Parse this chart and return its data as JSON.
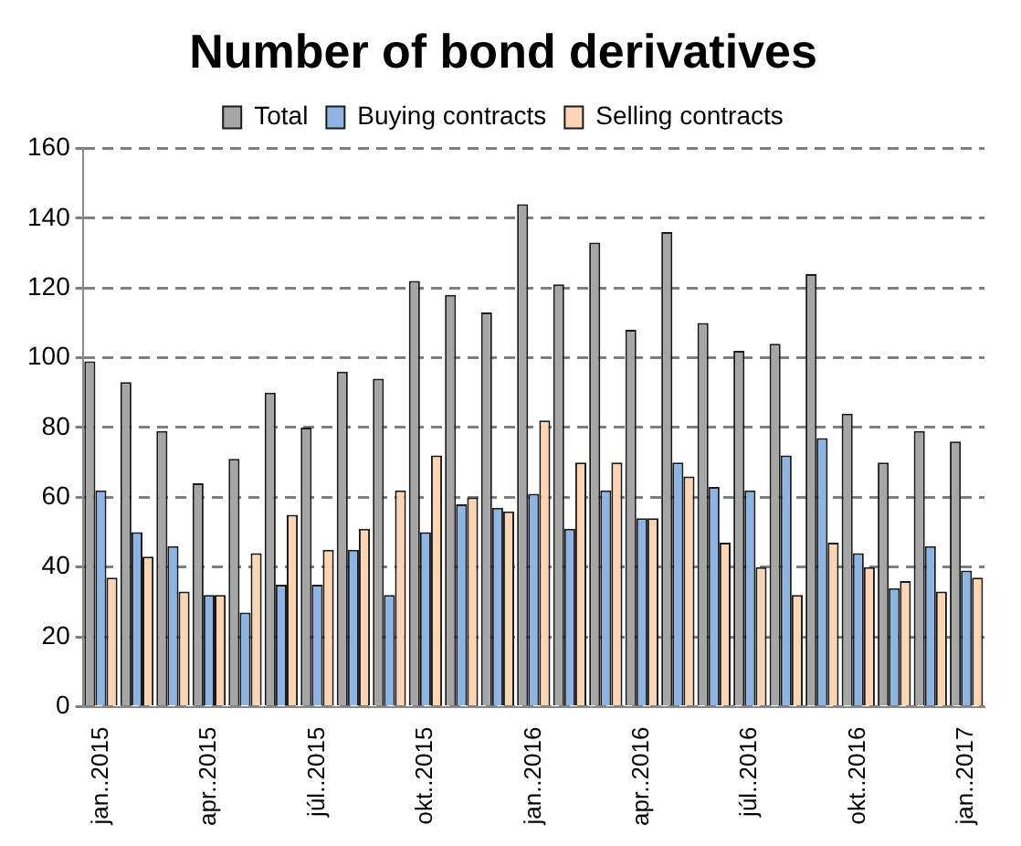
{
  "chart_data": {
    "type": "bar",
    "title": "Number of bond derivatives",
    "categories": [
      "jan..2015",
      null,
      null,
      "apr..2015",
      null,
      null,
      "júl..2015",
      null,
      null,
      "okt..2015",
      null,
      null,
      "jan..2016",
      null,
      null,
      "apr..2016",
      null,
      null,
      "júl..2016",
      null,
      null,
      "okt..2016",
      null,
      null,
      "jan..2017"
    ],
    "series": [
      {
        "name": "Total",
        "color": "#a6a6a6",
        "values": [
          99,
          93,
          79,
          64,
          71,
          90,
          80,
          96,
          94,
          122,
          118,
          113,
          144,
          121,
          133,
          108,
          136,
          110,
          102,
          104,
          124,
          84,
          70,
          79,
          76
        ]
      },
      {
        "name": "Buying contracts",
        "color": "#8db4e2",
        "values": [
          62,
          50,
          46,
          32,
          27,
          35,
          35,
          45,
          32,
          50,
          58,
          57,
          61,
          51,
          62,
          54,
          70,
          63,
          62,
          72,
          77,
          44,
          34,
          46,
          39
        ]
      },
      {
        "name": "Selling contracts",
        "color": "#fcd5b4",
        "values": [
          37,
          43,
          33,
          32,
          44,
          55,
          45,
          51,
          62,
          72,
          60,
          56,
          82,
          70,
          70,
          54,
          66,
          47,
          40,
          32,
          47,
          40,
          36,
          33,
          37
        ]
      }
    ],
    "ylim": [
      0,
      160
    ],
    "yticks": [
      0,
      20,
      40,
      60,
      80,
      100,
      120,
      140,
      160
    ],
    "grid": "y",
    "legend": "top"
  }
}
